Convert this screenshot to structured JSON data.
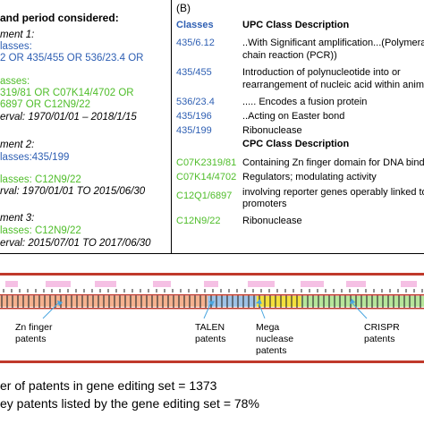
{
  "left_panel": {
    "heading": "and period considered:",
    "exp1": {
      "title": "ment 1:",
      "classes_label": "lasses:",
      "upc_line": "2 OR 435/455 OR 536/23.4 OR",
      "classes2_label": "asses:",
      "cpc_line1": "319/81 OR C07K14/4702 OR",
      "cpc_line2": "6897 OR C12N9/22",
      "interval": "erval: 1970/01/01 – 2018/1/15"
    },
    "exp2": {
      "title": "ment 2:",
      "classes": "lasses:435/199",
      "cpc": "lasses: C12N9/22",
      "interval": "rval:  1970/01/01 TO 2015/06/30"
    },
    "exp3": {
      "title": "ment 3:",
      "cpc": "lasses: C12N9/22",
      "interval": "erval: 2015/07/01 TO 2017/06/30"
    }
  },
  "right_panel": {
    "label": "(B)",
    "col_classes": "Classes",
    "upc_header": "UPC Class Description",
    "upc_rows": [
      {
        "code": "435/6.12",
        "desc": [
          "..With Significant amplification...(Polymeras",
          "chain reaction (PCR))"
        ]
      },
      {
        "code": "435/455",
        "desc": [
          "Introduction of polynucleotide into or",
          "rearrangement of nucleic acid within anima"
        ]
      },
      {
        "code": "536/23.4",
        "desc": [
          ".....  Encodes a fusion protein"
        ]
      },
      {
        "code": "435/196",
        "desc": [
          "..Acting on Easter bond"
        ]
      },
      {
        "code": "435/199",
        "desc": [
          "Ribonuclease"
        ]
      }
    ],
    "cpc_header": "CPC Class Description",
    "cpc_rows": [
      {
        "code": "C07K2319/81",
        "desc": [
          "Containing Zn finger domain for DNA bindin"
        ]
      },
      {
        "code": "C07K14/4702",
        "desc": [
          "Regulators; modulating activity"
        ]
      },
      {
        "code": "C12Q1/6897",
        "desc": [
          "involving reporter genes operably linked to",
          "promoters"
        ]
      },
      {
        "code": "C12N9/22",
        "desc": [
          "Ribonuclease"
        ]
      }
    ]
  },
  "strip": {
    "colors": {
      "red": "#c0392b",
      "salmon": "#f5b18e",
      "blue": "#9ec2e6",
      "yellow": "#f3e03c",
      "green": "#b6e59a",
      "pink": "#f5c0e4"
    },
    "segments": [
      {
        "name": "Zn finger",
        "start": 0,
        "end": 0.49,
        "color": "salmon"
      },
      {
        "name": "TALEN",
        "start": 0.49,
        "end": 0.605,
        "color": "blue"
      },
      {
        "name": "Mega nuclease",
        "start": 0.605,
        "end": 0.71,
        "color": "yellow"
      },
      {
        "name": "CRISPR",
        "start": 0.71,
        "end": 1.0,
        "color": "green"
      }
    ]
  },
  "labels": {
    "zn": [
      "Zn finger",
      "patents"
    ],
    "talen": [
      "TALEN",
      "patents"
    ],
    "mega": [
      "Mega",
      "nuclease",
      "patents"
    ],
    "crispr": [
      "CRISPR",
      "patents"
    ]
  },
  "footer": {
    "line1": "er of patents in gene editing set = 1373",
    "line2": "ey patents listed by the gene editing set = 78%"
  }
}
